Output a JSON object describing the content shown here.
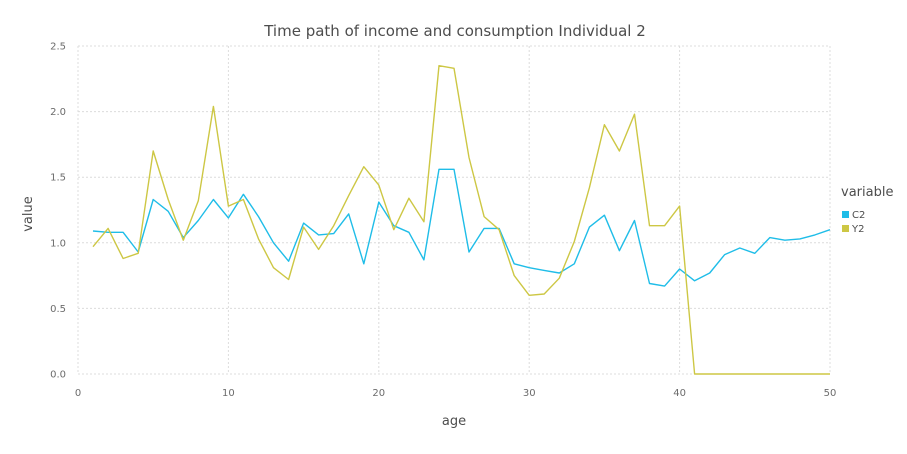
{
  "chart_data": {
    "type": "line",
    "title": "Time path of income and consumption Individual 2",
    "xlabel": "age",
    "ylabel": "value",
    "xlim": [
      0,
      50
    ],
    "ylim": [
      0,
      2.5
    ],
    "xticks": [
      0,
      10,
      20,
      30,
      40,
      50
    ],
    "yticks": [
      0.0,
      0.5,
      1.0,
      1.5,
      2.0,
      2.5
    ],
    "xtick_labels": [
      "0",
      "10",
      "20",
      "30",
      "40",
      "50"
    ],
    "ytick_labels": [
      "0.0",
      "0.5",
      "1.0",
      "1.5",
      "2.0",
      "2.5"
    ],
    "grid": true,
    "legend": {
      "title": "variable",
      "placement": "right"
    },
    "x": [
      1,
      2,
      3,
      4,
      5,
      6,
      7,
      8,
      9,
      10,
      11,
      12,
      13,
      14,
      15,
      16,
      17,
      18,
      19,
      20,
      21,
      22,
      23,
      24,
      25,
      26,
      27,
      28,
      29,
      30,
      31,
      32,
      33,
      34,
      35,
      36,
      37,
      38,
      39,
      40,
      41,
      42,
      43,
      44,
      45,
      46,
      47,
      48,
      49,
      50
    ],
    "series": [
      {
        "name": "C2",
        "color": "#1fbde8",
        "values": [
          1.09,
          1.08,
          1.08,
          0.93,
          1.33,
          1.24,
          1.04,
          1.17,
          1.33,
          1.19,
          1.37,
          1.2,
          1.0,
          0.86,
          1.15,
          1.06,
          1.07,
          1.22,
          0.84,
          1.31,
          1.13,
          1.08,
          0.87,
          1.56,
          1.56,
          0.93,
          1.11,
          1.11,
          0.84,
          0.81,
          0.79,
          0.77,
          0.84,
          1.12,
          1.21,
          0.94,
          1.17,
          0.69,
          0.67,
          0.8,
          0.71,
          0.77,
          0.91,
          0.96,
          0.92,
          1.04,
          1.02,
          1.03,
          1.06,
          1.1
        ]
      },
      {
        "name": "Y2",
        "color": "#cdc744",
        "values": [
          0.97,
          1.11,
          0.88,
          0.92,
          1.7,
          1.33,
          1.02,
          1.32,
          2.04,
          1.28,
          1.33,
          1.03,
          0.81,
          0.72,
          1.12,
          0.95,
          1.13,
          1.36,
          1.58,
          1.44,
          1.1,
          1.34,
          1.16,
          2.35,
          2.33,
          1.65,
          1.2,
          1.1,
          0.75,
          0.6,
          0.61,
          0.73,
          1.01,
          1.42,
          1.9,
          1.7,
          1.98,
          1.13,
          1.13,
          1.28,
          0.0,
          0.0,
          0.0,
          0.0,
          0.0,
          0.0,
          0.0,
          0.0,
          0.0,
          0.0
        ]
      }
    ]
  }
}
